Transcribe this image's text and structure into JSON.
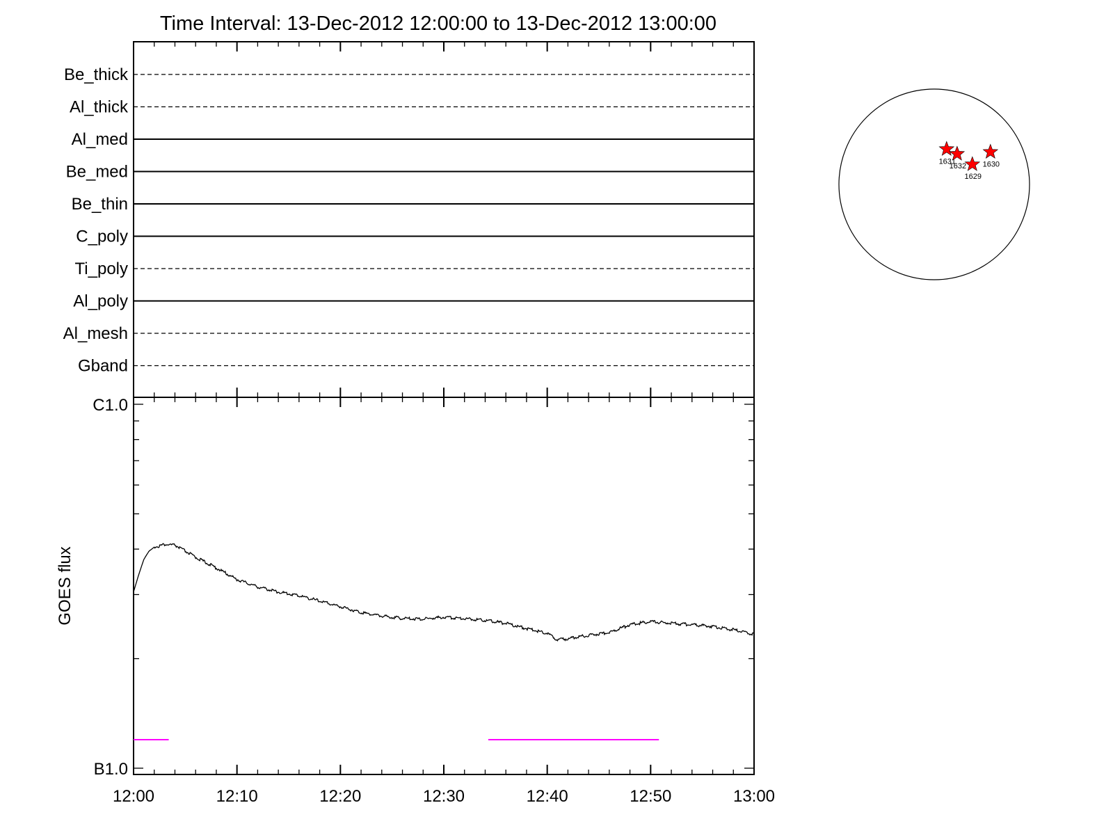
{
  "title": "Time Interval: 13-Dec-2012 12:00:00 to 13-Dec-2012 13:00:00",
  "colors": {
    "axis": "#000000",
    "flux_line": "#000000",
    "coverage_bar": "#ff00ff",
    "star": "#ff0000"
  },
  "chart_data": [
    {
      "type": "line",
      "panel": "filter-timeline",
      "x_ticks": [
        "12:00",
        "12:10",
        "12:20",
        "12:30",
        "12:40",
        "12:50",
        "13:00"
      ],
      "xlim": [
        "12:00",
        "13:00"
      ],
      "filters": [
        {
          "name": "Be_thick",
          "style": "dashed"
        },
        {
          "name": "Al_thick",
          "style": "dashed"
        },
        {
          "name": "Al_med",
          "style": "solid"
        },
        {
          "name": "Be_med",
          "style": "solid"
        },
        {
          "name": "Be_thin",
          "style": "solid"
        },
        {
          "name": "C_poly",
          "style": "solid"
        },
        {
          "name": "Ti_poly",
          "style": "dashed"
        },
        {
          "name": "Al_poly",
          "style": "solid"
        },
        {
          "name": "Al_mesh",
          "style": "dashed"
        },
        {
          "name": "Gband",
          "style": "dashed"
        }
      ]
    },
    {
      "type": "line",
      "panel": "goes-flux",
      "ylabel": "GOES flux",
      "y_scale": "log",
      "y_ticks": [
        "C1.0",
        "B1.0"
      ],
      "ylim": [
        1e-07,
        1e-06
      ],
      "x_ticks": [
        "12:00",
        "12:10",
        "12:20",
        "12:30",
        "12:40",
        "12:50",
        "13:00"
      ],
      "xlim_minutes": [
        0,
        60
      ],
      "series": [
        {
          "x_minutes": [
            0,
            0.5,
            1,
            1.5,
            2,
            3,
            4,
            5,
            6,
            8,
            10,
            12,
            14,
            16,
            18,
            20,
            22,
            24,
            26,
            28,
            30,
            32,
            34,
            36,
            38,
            40,
            41,
            42,
            44,
            46,
            48,
            50,
            52,
            54,
            56,
            58,
            60
          ],
          "values": [
            3.05e-07,
            3.4e-07,
            3.75e-07,
            3.95e-07,
            4.05e-07,
            4.12e-07,
            4.1e-07,
            3.95e-07,
            3.8e-07,
            3.55e-07,
            3.3e-07,
            3.15e-07,
            3.05e-07,
            2.98e-07,
            2.88e-07,
            2.78e-07,
            2.68e-07,
            2.62e-07,
            2.58e-07,
            2.57e-07,
            2.6e-07,
            2.58e-07,
            2.55e-07,
            2.5e-07,
            2.42e-07,
            2.35e-07,
            2.25e-07,
            2.27e-07,
            2.32e-07,
            2.36e-07,
            2.48e-07,
            2.53e-07,
            2.5e-07,
            2.48e-07,
            2.45e-07,
            2.4e-07,
            2.33e-07
          ]
        }
      ],
      "coverage_segments_minutes": [
        [
          0,
          3.4
        ],
        [
          34.3,
          50.8
        ]
      ]
    }
  ],
  "sun_map": {
    "regions": [
      {
        "label": "1631",
        "lon_frac": 0.13,
        "lat_frac": 0.37
      },
      {
        "label": "1632",
        "lon_frac": 0.24,
        "lat_frac": 0.32
      },
      {
        "label": "1629",
        "lon_frac": 0.4,
        "lat_frac": 0.21
      },
      {
        "label": "1630",
        "lon_frac": 0.59,
        "lat_frac": 0.34
      }
    ]
  }
}
